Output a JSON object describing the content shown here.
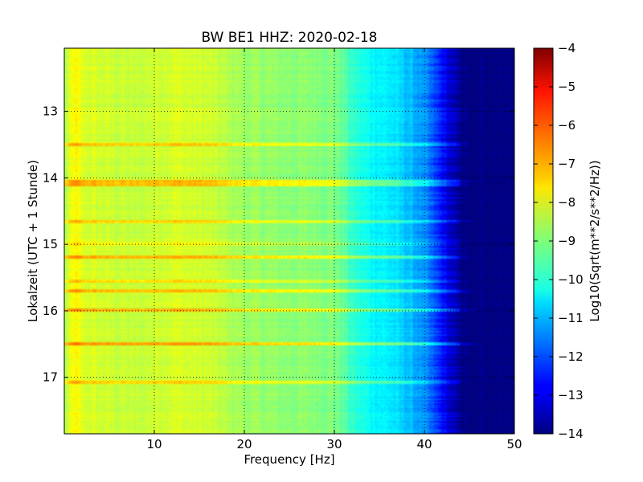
{
  "chart_data": {
    "type": "heatmap",
    "title": "BW BE1 HHZ: 2020-02-18",
    "xlabel": "Frequency [Hz]",
    "ylabel": "Lokalzeit (UTC + 1 Stunde)",
    "colorbar_label": "Log10(Sqrt(m**2/s**2/Hz))",
    "colormap": "jet",
    "grid": true,
    "y_inverted": true,
    "xlim": [
      0,
      50
    ],
    "ylim": [
      12.05,
      17.85
    ],
    "clim": [
      -14,
      -4
    ],
    "x_ticks": [
      10,
      20,
      30,
      40,
      50
    ],
    "x_tick_labels": [
      "10",
      "20",
      "30",
      "40",
      "50"
    ],
    "y_ticks": [
      13,
      14,
      15,
      16,
      17
    ],
    "y_tick_labels": [
      "13",
      "14",
      "15",
      "16",
      "17"
    ],
    "colorbar_ticks": [
      -4,
      -5,
      -6,
      -7,
      -8,
      -9,
      -10,
      -11,
      -12,
      -13,
      -14
    ],
    "colorbar_tick_labels": [
      "−4",
      "−5",
      "−6",
      "−7",
      "−8",
      "−9",
      "−10",
      "−11",
      "−12",
      "−13",
      "−14"
    ],
    "spectrum_profile": {
      "frequency_hz": [
        0,
        0.8,
        1.2,
        2,
        4,
        8,
        12,
        16,
        20,
        24,
        28,
        30,
        31,
        32,
        34,
        36,
        38,
        40,
        42,
        43,
        44,
        45,
        46,
        50
      ],
      "level": [
        -8.6,
        -8.0,
        -7.7,
        -8.1,
        -8.2,
        -8.35,
        -8.1,
        -8.25,
        -8.7,
        -8.85,
        -8.9,
        -9.0,
        -9.3,
        -9.8,
        -10.2,
        -10.4,
        -10.8,
        -11.3,
        -12.4,
        -13.0,
        -13.4,
        -13.7,
        -14.0,
        -14.0
      ]
    },
    "disturbance_bands": [
      {
        "time_h": 13.5,
        "extra_level": 1.0
      },
      {
        "time_h": 14.05,
        "extra_level": 1.2
      },
      {
        "time_h": 14.1,
        "extra_level": 1.2
      },
      {
        "time_h": 14.65,
        "extra_level": 0.9
      },
      {
        "time_h": 15.0,
        "extra_level": 0.6
      },
      {
        "time_h": 15.2,
        "extra_level": 1.3
      },
      {
        "time_h": 15.55,
        "extra_level": 0.8
      },
      {
        "time_h": 15.7,
        "extra_level": 1.1
      },
      {
        "time_h": 16.0,
        "extra_level": 1.2
      },
      {
        "time_h": 16.5,
        "extra_level": 1.4
      },
      {
        "time_h": 17.08,
        "extra_level": 1.0
      }
    ]
  }
}
